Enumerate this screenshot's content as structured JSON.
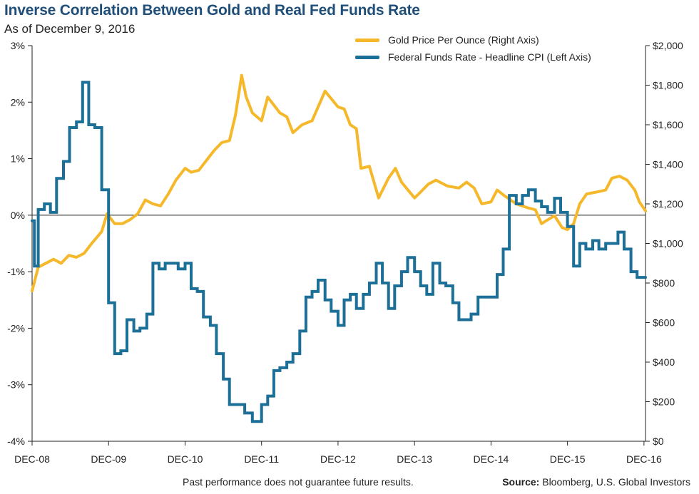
{
  "header": {
    "title": "Inverse Correlation Between Gold and Real Fed Funds Rate",
    "subtitle": "As of December 9, 2016"
  },
  "footer": {
    "note": "Past performance does not guarantee future results.",
    "source_label": "Source:",
    "source_text": " Bloomberg, U.S. Global Investors"
  },
  "colors": {
    "gold": "#f5b82a",
    "fed": "#1c6f97",
    "axis": "#222222"
  },
  "chart_data": {
    "type": "line",
    "title": "Inverse Correlation Between Gold and Real Fed Funds Rate",
    "subtitle": "As of December 9, 2016",
    "x_range": [
      2008.92,
      2016.94
    ],
    "x_ticks": [
      {
        "label": "DEC-08",
        "value": 2008.92
      },
      {
        "label": "DEC-09",
        "value": 2009.92
      },
      {
        "label": "DEC-10",
        "value": 2010.92
      },
      {
        "label": "DEC-11",
        "value": 2011.92
      },
      {
        "label": "DEC-12",
        "value": 2012.92
      },
      {
        "label": "DEC-13",
        "value": 2013.92
      },
      {
        "label": "DEC-14",
        "value": 2014.92
      },
      {
        "label": "DEC-15",
        "value": 2015.92
      },
      {
        "label": "DEC-16",
        "value": 2016.92
      }
    ],
    "y_left": {
      "min": -4,
      "max": 3,
      "ticks": [
        {
          "label": "3%",
          "value": 3
        },
        {
          "label": "2%",
          "value": 2
        },
        {
          "label": "1%",
          "value": 1
        },
        {
          "label": "0%",
          "value": 0
        },
        {
          "label": "-1%",
          "value": -1
        },
        {
          "label": "-2%",
          "value": -2
        },
        {
          "label": "-3%",
          "value": -3
        },
        {
          "label": "-4%",
          "value": -4
        }
      ]
    },
    "y_right": {
      "min": 0,
      "max": 2000,
      "ticks": [
        {
          "label": "$2,000",
          "value": 2000
        },
        {
          "label": "$1,800",
          "value": 1800
        },
        {
          "label": "$1,600",
          "value": 1600
        },
        {
          "label": "$1,400",
          "value": 1400
        },
        {
          "label": "$1,200",
          "value": 1200
        },
        {
          "label": "$1,000",
          "value": 1000
        },
        {
          "label": "$800",
          "value": 800
        },
        {
          "label": "$600",
          "value": 600
        },
        {
          "label": "$400",
          "value": 400
        },
        {
          "label": "$200",
          "value": 200
        },
        {
          "label": "$0",
          "value": 0
        }
      ]
    },
    "grid": false,
    "zero_line": true,
    "legend": {
      "placement": "top-right"
    },
    "series": [
      {
        "name": "Gold Price Per Ounce (Right Axis)",
        "axis": "right",
        "color": "#f5b82a",
        "points": [
          [
            2008.92,
            760
          ],
          [
            2009.0,
            880
          ],
          [
            2009.1,
            900
          ],
          [
            2009.2,
            920
          ],
          [
            2009.3,
            900
          ],
          [
            2009.4,
            940
          ],
          [
            2009.5,
            930
          ],
          [
            2009.6,
            950
          ],
          [
            2009.7,
            1000
          ],
          [
            2009.83,
            1060
          ],
          [
            2009.9,
            1150
          ],
          [
            2010.0,
            1100
          ],
          [
            2010.1,
            1100
          ],
          [
            2010.2,
            1120
          ],
          [
            2010.3,
            1150
          ],
          [
            2010.4,
            1220
          ],
          [
            2010.5,
            1200
          ],
          [
            2010.6,
            1190
          ],
          [
            2010.7,
            1250
          ],
          [
            2010.8,
            1320
          ],
          [
            2010.92,
            1380
          ],
          [
            2011.0,
            1360
          ],
          [
            2011.1,
            1370
          ],
          [
            2011.2,
            1420
          ],
          [
            2011.3,
            1470
          ],
          [
            2011.4,
            1510
          ],
          [
            2011.5,
            1520
          ],
          [
            2011.58,
            1650
          ],
          [
            2011.66,
            1850
          ],
          [
            2011.72,
            1740
          ],
          [
            2011.8,
            1660
          ],
          [
            2011.92,
            1620
          ],
          [
            2012.0,
            1740
          ],
          [
            2012.08,
            1700
          ],
          [
            2012.16,
            1660
          ],
          [
            2012.25,
            1640
          ],
          [
            2012.33,
            1560
          ],
          [
            2012.45,
            1600
          ],
          [
            2012.58,
            1620
          ],
          [
            2012.75,
            1770
          ],
          [
            2012.92,
            1690
          ],
          [
            2013.0,
            1680
          ],
          [
            2013.08,
            1600
          ],
          [
            2013.16,
            1580
          ],
          [
            2013.22,
            1380
          ],
          [
            2013.33,
            1390
          ],
          [
            2013.45,
            1230
          ],
          [
            2013.58,
            1330
          ],
          [
            2013.67,
            1380
          ],
          [
            2013.75,
            1310
          ],
          [
            2013.92,
            1230
          ],
          [
            2014.0,
            1260
          ],
          [
            2014.1,
            1300
          ],
          [
            2014.2,
            1320
          ],
          [
            2014.35,
            1290
          ],
          [
            2014.5,
            1280
          ],
          [
            2014.6,
            1310
          ],
          [
            2014.7,
            1280
          ],
          [
            2014.8,
            1200
          ],
          [
            2014.92,
            1210
          ],
          [
            2015.0,
            1270
          ],
          [
            2015.1,
            1240
          ],
          [
            2015.25,
            1200
          ],
          [
            2015.4,
            1180
          ],
          [
            2015.5,
            1170
          ],
          [
            2015.58,
            1100
          ],
          [
            2015.75,
            1140
          ],
          [
            2015.85,
            1080
          ],
          [
            2015.92,
            1070
          ],
          [
            2016.0,
            1100
          ],
          [
            2016.08,
            1200
          ],
          [
            2016.17,
            1250
          ],
          [
            2016.3,
            1260
          ],
          [
            2016.42,
            1270
          ],
          [
            2016.5,
            1330
          ],
          [
            2016.6,
            1340
          ],
          [
            2016.7,
            1320
          ],
          [
            2016.8,
            1270
          ],
          [
            2016.86,
            1210
          ],
          [
            2016.94,
            1165
          ]
        ]
      },
      {
        "name": "Federal Funds Rate - Headline CPI (Left Axis)",
        "axis": "left",
        "color": "#1c6f97",
        "step": true,
        "points": [
          [
            2008.92,
            -0.1
          ],
          [
            2008.95,
            -0.9
          ],
          [
            2009.0,
            0.1
          ],
          [
            2009.08,
            0.2
          ],
          [
            2009.16,
            0.05
          ],
          [
            2009.24,
            0.65
          ],
          [
            2009.33,
            0.95
          ],
          [
            2009.41,
            1.55
          ],
          [
            2009.5,
            1.65
          ],
          [
            2009.58,
            2.35
          ],
          [
            2009.66,
            1.6
          ],
          [
            2009.74,
            1.55
          ],
          [
            2009.83,
            0.45
          ],
          [
            2009.92,
            -1.55
          ],
          [
            2010.0,
            -2.45
          ],
          [
            2010.08,
            -2.4
          ],
          [
            2010.16,
            -1.85
          ],
          [
            2010.25,
            -2.05
          ],
          [
            2010.33,
            -2.0
          ],
          [
            2010.42,
            -1.75
          ],
          [
            2010.5,
            -0.85
          ],
          [
            2010.58,
            -0.95
          ],
          [
            2010.66,
            -0.85
          ],
          [
            2010.83,
            -0.95
          ],
          [
            2010.92,
            -0.85
          ],
          [
            2011.0,
            -1.3
          ],
          [
            2011.08,
            -1.35
          ],
          [
            2011.16,
            -1.8
          ],
          [
            2011.25,
            -1.95
          ],
          [
            2011.33,
            -2.45
          ],
          [
            2011.42,
            -2.9
          ],
          [
            2011.5,
            -3.35
          ],
          [
            2011.7,
            -3.5
          ],
          [
            2011.8,
            -3.65
          ],
          [
            2011.92,
            -3.35
          ],
          [
            2012.0,
            -3.2
          ],
          [
            2012.08,
            -2.75
          ],
          [
            2012.16,
            -2.7
          ],
          [
            2012.25,
            -2.6
          ],
          [
            2012.33,
            -2.45
          ],
          [
            2012.42,
            -2.05
          ],
          [
            2012.5,
            -1.45
          ],
          [
            2012.58,
            -1.35
          ],
          [
            2012.66,
            -1.15
          ],
          [
            2012.75,
            -1.5
          ],
          [
            2012.83,
            -1.7
          ],
          [
            2012.92,
            -1.95
          ],
          [
            2013.0,
            -1.5
          ],
          [
            2013.08,
            -1.4
          ],
          [
            2013.16,
            -1.65
          ],
          [
            2013.25,
            -1.4
          ],
          [
            2013.33,
            -1.2
          ],
          [
            2013.42,
            -0.85
          ],
          [
            2013.5,
            -1.2
          ],
          [
            2013.58,
            -1.65
          ],
          [
            2013.66,
            -1.25
          ],
          [
            2013.75,
            -1.0
          ],
          [
            2013.83,
            -0.75
          ],
          [
            2013.92,
            -1.0
          ],
          [
            2014.0,
            -1.25
          ],
          [
            2014.08,
            -1.4
          ],
          [
            2014.16,
            -0.85
          ],
          [
            2014.25,
            -1.2
          ],
          [
            2014.33,
            -1.25
          ],
          [
            2014.42,
            -1.55
          ],
          [
            2014.5,
            -1.85
          ],
          [
            2014.66,
            -1.75
          ],
          [
            2014.75,
            -1.45
          ],
          [
            2014.92,
            -1.45
          ],
          [
            2015.0,
            -1.05
          ],
          [
            2015.08,
            -0.6
          ],
          [
            2015.16,
            0.35
          ],
          [
            2015.25,
            0.2
          ],
          [
            2015.33,
            0.35
          ],
          [
            2015.41,
            0.45
          ],
          [
            2015.5,
            0.25
          ],
          [
            2015.58,
            0.15
          ],
          [
            2015.66,
            0.05
          ],
          [
            2015.75,
            0.3
          ],
          [
            2015.83,
            0.05
          ],
          [
            2015.92,
            -0.2
          ],
          [
            2016.0,
            -0.9
          ],
          [
            2016.08,
            -0.5
          ],
          [
            2016.16,
            -0.6
          ],
          [
            2016.25,
            -0.45
          ],
          [
            2016.33,
            -0.6
          ],
          [
            2016.42,
            -0.5
          ],
          [
            2016.5,
            -0.5
          ],
          [
            2016.58,
            -0.3
          ],
          [
            2016.66,
            -0.6
          ],
          [
            2016.75,
            -1.0
          ],
          [
            2016.83,
            -1.1
          ],
          [
            2016.94,
            -1.1
          ]
        ]
      }
    ]
  }
}
